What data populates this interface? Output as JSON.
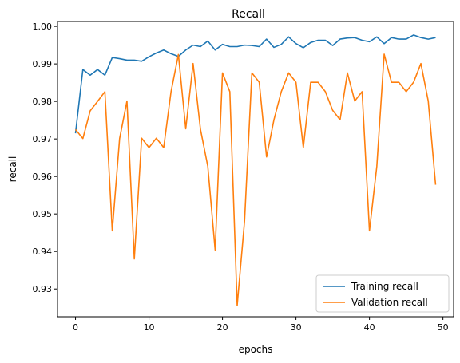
{
  "chart_data": {
    "type": "line",
    "title": "Recall",
    "xlabel": "epochs",
    "ylabel": "recall",
    "xlim": [
      -2.45,
      51.45
    ],
    "ylim": [
      0.9226,
      1.0013
    ],
    "xticks": [
      0,
      10,
      20,
      30,
      40,
      50
    ],
    "xtick_labels": [
      "0",
      "10",
      "20",
      "30",
      "40",
      "50"
    ],
    "yticks": [
      0.93,
      0.94,
      0.95,
      0.96,
      0.97,
      0.98,
      0.99,
      1.0
    ],
    "ytick_labels": [
      "0.93",
      "0.94",
      "0.95",
      "0.96",
      "0.97",
      "0.98",
      "0.99",
      "1.00"
    ],
    "grid": false,
    "legend_position": "lower right",
    "x": [
      0,
      1,
      2,
      3,
      4,
      5,
      6,
      7,
      8,
      9,
      10,
      11,
      12,
      13,
      14,
      15,
      16,
      17,
      18,
      19,
      20,
      21,
      22,
      23,
      24,
      25,
      26,
      27,
      28,
      29,
      30,
      31,
      32,
      33,
      34,
      35,
      36,
      37,
      38,
      39,
      40,
      41,
      42,
      43,
      44,
      45,
      46,
      47,
      48,
      49
    ],
    "series": [
      {
        "name": "Training recall",
        "color": "#1f77b4",
        "values": [
          0.9715,
          0.9885,
          0.987,
          0.9885,
          0.987,
          0.9917,
          0.9914,
          0.991,
          0.991,
          0.9907,
          0.9919,
          0.9929,
          0.9937,
          0.9927,
          0.992,
          0.9937,
          0.995,
          0.9946,
          0.9961,
          0.9937,
          0.9952,
          0.9946,
          0.9946,
          0.995,
          0.9949,
          0.9946,
          0.9966,
          0.9944,
          0.9952,
          0.9972,
          0.9954,
          0.9943,
          0.9957,
          0.9963,
          0.9963,
          0.9949,
          0.9966,
          0.9969,
          0.997,
          0.9963,
          0.9959,
          0.9972,
          0.9954,
          0.997,
          0.9966,
          0.9966,
          0.9977,
          0.997,
          0.9966,
          0.997
        ]
      },
      {
        "name": "Validation recall",
        "color": "#ff7f0e",
        "values": [
          0.9725,
          0.9701,
          0.9775,
          0.98,
          0.9826,
          0.9455,
          0.9701,
          0.9801,
          0.938,
          0.9702,
          0.9677,
          0.9702,
          0.9677,
          0.9826,
          0.9925,
          0.9727,
          0.9901,
          0.9726,
          0.9627,
          0.9404,
          0.9876,
          0.9826,
          0.9256,
          0.9481,
          0.9876,
          0.9851,
          0.9652,
          0.9751,
          0.9826,
          0.9876,
          0.9851,
          0.9677,
          0.9851,
          0.9851,
          0.9826,
          0.9776,
          0.9751,
          0.9876,
          0.9801,
          0.9826,
          0.9455,
          0.9627,
          0.9926,
          0.9851,
          0.9851,
          0.9826,
          0.9851,
          0.9901,
          0.9801,
          0.9578
        ]
      }
    ]
  }
}
